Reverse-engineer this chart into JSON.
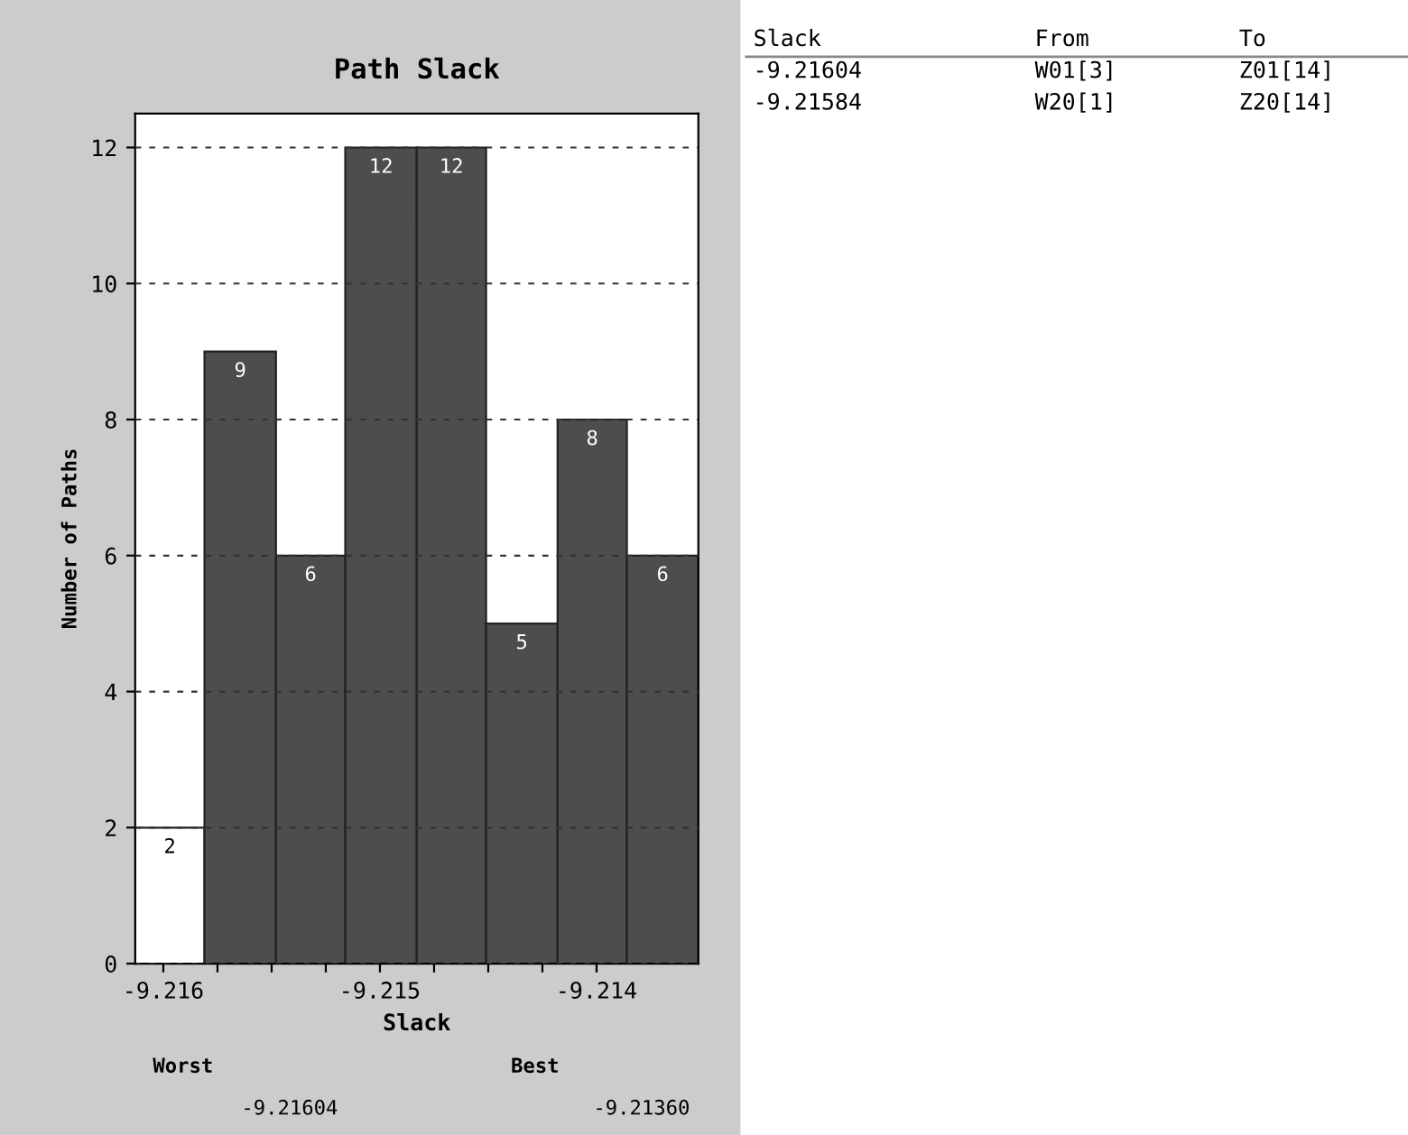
{
  "chart_data": {
    "type": "histogram",
    "title": "Path Slack",
    "xlabel": "Slack",
    "ylabel": "Number of Paths",
    "bins": [
      -9.21613,
      -9.21581,
      -9.21548,
      -9.21516,
      -9.21483,
      -9.21451,
      -9.21418,
      -9.21386,
      -9.21353
    ],
    "values": [
      2,
      9,
      6,
      12,
      12,
      5,
      8,
      6
    ],
    "colors": [
      "#ffffff",
      "#4d4d4d",
      "#4d4d4d",
      "#4d4d4d",
      "#4d4d4d",
      "#4d4d4d",
      "#4d4d4d",
      "#4d4d4d"
    ],
    "data_labels": true,
    "xlim": [
      -9.21613,
      -9.21353
    ],
    "xticks": [
      -9.216,
      {
        "value": -9.21575,
        "label": null
      },
      {
        "value": -9.2155,
        "label": null
      },
      {
        "value": -9.21525,
        "label": null
      },
      -9.215,
      {
        "value": -9.21475,
        "label": null
      },
      {
        "value": -9.2145,
        "label": null
      },
      {
        "value": -9.21425,
        "label": null
      },
      -9.214
    ],
    "ylim": [
      0,
      12.5
    ],
    "yticks": [
      0,
      2,
      4,
      6,
      8,
      10,
      12
    ],
    "grid": "y",
    "annotations": [
      "Worst",
      "-9.21604",
      "Best",
      "-9.21360",
      "Slack",
      "From",
      "To",
      "-9.21604",
      "W01[3]",
      "Z01[14]",
      "-9.21584",
      "W20[1]",
      "Z20[14]"
    ]
  }
}
